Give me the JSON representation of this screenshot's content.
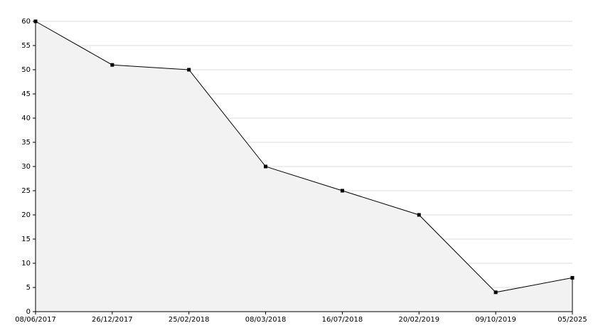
{
  "chart_data": {
    "type": "area",
    "categories": [
      "08/06/2017",
      "26/12/2017",
      "25/02/2018",
      "08/03/2018",
      "16/07/2018",
      "20/02/2019",
      "09/10/2019",
      "05/2025"
    ],
    "values": [
      60,
      51,
      50,
      30,
      25,
      20,
      4,
      7
    ],
    "color": "#000000",
    "fill": "#f2f2f2",
    "ylim": [
      0,
      60
    ],
    "yticks": [
      0,
      5,
      10,
      15,
      20,
      25,
      30,
      35,
      40,
      45,
      50,
      55,
      60
    ],
    "grid": true
  }
}
